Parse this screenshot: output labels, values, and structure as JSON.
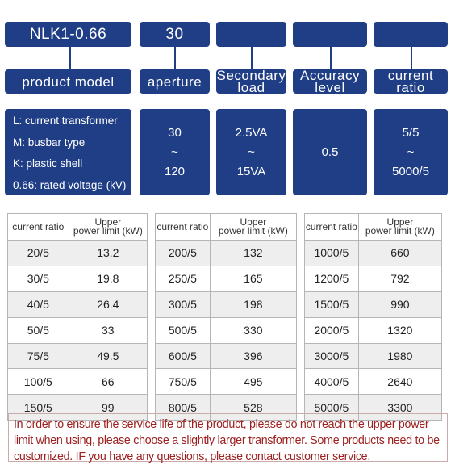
{
  "model_row": {
    "model": "NLK1-0.66",
    "aperture": "30"
  },
  "labels": {
    "product_model": "product model",
    "aperture": "aperture",
    "secondary_load_1": "Secondary",
    "secondary_load_2": "load",
    "accuracy_level_1": "Accuracy",
    "accuracy_level_2": "level",
    "current_ratio_1": "current",
    "current_ratio_2": "ratio"
  },
  "legend": [
    "L: current transformer",
    "M: busbar type",
    "K: plastic shell",
    "0.66: rated voltage (kV)"
  ],
  "specs": {
    "aperture": {
      "min": "30",
      "sep": "~",
      "max": "120"
    },
    "secondary_load": {
      "min": "2.5VA",
      "sep": "~",
      "max": "15VA"
    },
    "accuracy": "0.5",
    "current_ratio": {
      "min": "5/5",
      "sep": "~",
      "max": "5000/5"
    }
  },
  "table_headers": {
    "ratio": "current ratio",
    "power_1": "Upper",
    "power_2": "power limit (kW)"
  },
  "tables": [
    {
      "rows": [
        [
          "20/5",
          "13.2"
        ],
        [
          "30/5",
          "19.8"
        ],
        [
          "40/5",
          "26.4"
        ],
        [
          "50/5",
          "33"
        ],
        [
          "75/5",
          "49.5"
        ],
        [
          "100/5",
          "66"
        ],
        [
          "150/5",
          "99"
        ]
      ]
    },
    {
      "rows": [
        [
          "200/5",
          "132"
        ],
        [
          "250/5",
          "165"
        ],
        [
          "300/5",
          "198"
        ],
        [
          "500/5",
          "330"
        ],
        [
          "600/5",
          "396"
        ],
        [
          "750/5",
          "495"
        ],
        [
          "800/5",
          "528"
        ]
      ]
    },
    {
      "rows": [
        [
          "1000/5",
          "660"
        ],
        [
          "1200/5",
          "792"
        ],
        [
          "1500/5",
          "990"
        ],
        [
          "2000/5",
          "1320"
        ],
        [
          "3000/5",
          "1980"
        ],
        [
          "4000/5",
          "2640"
        ],
        [
          "5000/5",
          "3300"
        ]
      ]
    }
  ],
  "note": "In order to ensure the service life of the product, please do not reach the upper power limit when using, please choose a slightly larger transformer. Some products need to be customized. IF you have any questions, please contact customer service.",
  "colors": {
    "box": "#1f3e86",
    "note_text": "#9e2020"
  }
}
